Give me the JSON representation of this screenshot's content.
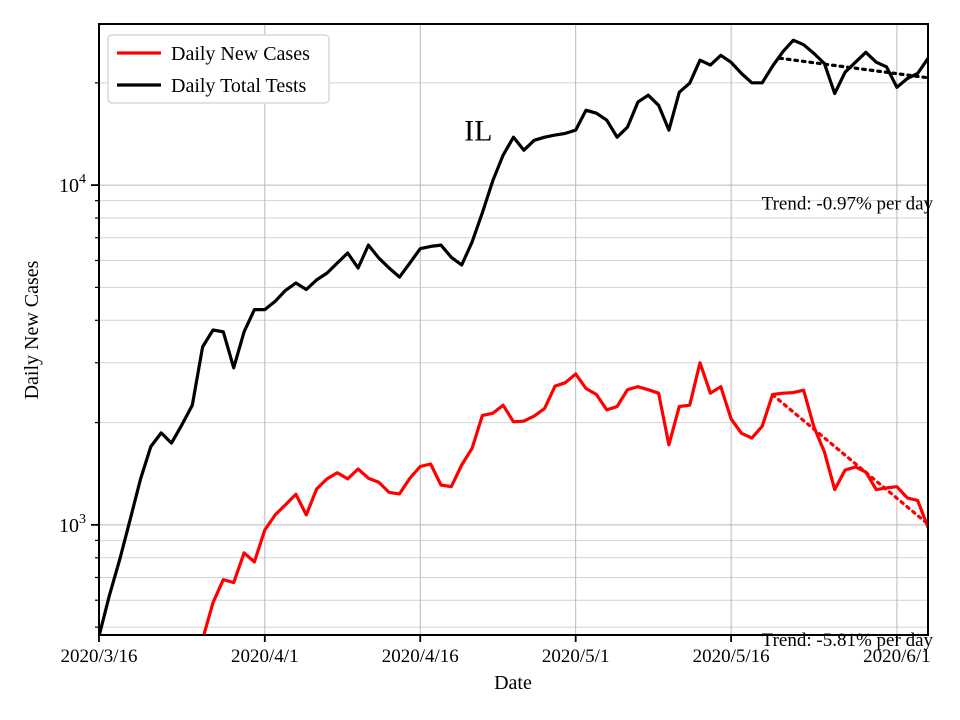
{
  "chart_data": {
    "type": "line",
    "state_label": "IL",
    "xlabel": "Date",
    "ylabel": "Daily New Cases",
    "y_scale": "log",
    "x_domain_days": [
      0,
      80
    ],
    "ylim": [
      474,
      29800
    ],
    "x_ticks": [
      {
        "day": 0,
        "label": "2020/3/16"
      },
      {
        "day": 16,
        "label": "2020/4/1"
      },
      {
        "day": 31,
        "label": "2020/4/16"
      },
      {
        "day": 46,
        "label": "2020/5/1"
      },
      {
        "day": 61,
        "label": "2020/5/16"
      },
      {
        "day": 77,
        "label": "2020/6/1"
      }
    ],
    "y_major_ticks": [
      {
        "value": 1000,
        "base": "10",
        "exp": "3"
      },
      {
        "value": 10000,
        "base": "10",
        "exp": "4"
      }
    ],
    "y_minor_ticks": [
      500,
      600,
      700,
      800,
      900,
      2000,
      3000,
      4000,
      5000,
      6000,
      7000,
      8000,
      9000,
      20000
    ],
    "dates": [
      "2020/3/16",
      "2020/3/17",
      "2020/3/18",
      "2020/3/19",
      "2020/3/20",
      "2020/3/21",
      "2020/3/22",
      "2020/3/23",
      "2020/3/24",
      "2020/3/25",
      "2020/3/26",
      "2020/3/27",
      "2020/3/28",
      "2020/3/29",
      "2020/3/30",
      "2020/3/31",
      "2020/4/1",
      "2020/4/2",
      "2020/4/3",
      "2020/4/4",
      "2020/4/5",
      "2020/4/6",
      "2020/4/7",
      "2020/4/8",
      "2020/4/9",
      "2020/4/10",
      "2020/4/11",
      "2020/4/12",
      "2020/4/13",
      "2020/4/14",
      "2020/4/15",
      "2020/4/16",
      "2020/4/17",
      "2020/4/18",
      "2020/4/19",
      "2020/4/20",
      "2020/4/21",
      "2020/4/22",
      "2020/4/23",
      "2020/4/24",
      "2020/4/25",
      "2020/4/26",
      "2020/4/27",
      "2020/4/28",
      "2020/4/29",
      "2020/4/30",
      "2020/5/1",
      "2020/5/2",
      "2020/5/3",
      "2020/5/4",
      "2020/5/5",
      "2020/5/6",
      "2020/5/7",
      "2020/5/8",
      "2020/5/9",
      "2020/5/10",
      "2020/5/11",
      "2020/5/12",
      "2020/5/13",
      "2020/5/14",
      "2020/5/15",
      "2020/5/16",
      "2020/5/17",
      "2020/5/18",
      "2020/5/19",
      "2020/5/20",
      "2020/5/21",
      "2020/5/22",
      "2020/5/23",
      "2020/5/24",
      "2020/5/25",
      "2020/5/26",
      "2020/5/27",
      "2020/5/28",
      "2020/5/29",
      "2020/5/30",
      "2020/5/31",
      "2020/6/1",
      "2020/6/2",
      "2020/6/3",
      "2020/6/4"
    ],
    "series": [
      {
        "name": "Daily New Cases",
        "color": "#ff0000",
        "values": [
          null,
          null,
          null,
          null,
          null,
          null,
          null,
          null,
          null,
          null,
          460,
          590,
          690,
          676,
          827,
          778,
          966,
          1070,
          1146,
          1230,
          1070,
          1275,
          1365,
          1424,
          1365,
          1460,
          1372,
          1335,
          1246,
          1233,
          1372,
          1485,
          1510,
          1310,
          1295,
          1500,
          1680,
          2100,
          2130,
          2250,
          2010,
          2020,
          2090,
          2200,
          2560,
          2620,
          2780,
          2520,
          2420,
          2180,
          2230,
          2500,
          2550,
          2500,
          2440,
          1720,
          2230,
          2250,
          3000,
          2440,
          2550,
          2050,
          1860,
          1800,
          1950,
          2420,
          2440,
          2450,
          2490,
          1940,
          1640,
          1270,
          1450,
          1480,
          1430,
          1270,
          1285,
          1295,
          1200,
          1180,
          985
        ]
      },
      {
        "name": "Daily Total Tests",
        "color": "#000000",
        "values": [
          470,
          620,
          790,
          1035,
          1360,
          1700,
          1865,
          1740,
          1970,
          2250,
          3340,
          3745,
          3700,
          2900,
          3700,
          4300,
          4300,
          4550,
          4900,
          5150,
          4930,
          5260,
          5510,
          5900,
          6310,
          5700,
          6660,
          6100,
          5700,
          5360,
          5900,
          6500,
          6600,
          6660,
          6130,
          5820,
          6800,
          8300,
          10300,
          12250,
          13840,
          12670,
          13550,
          13840,
          14030,
          14200,
          14520,
          16620,
          16280,
          15530,
          13840,
          14820,
          17550,
          18390,
          17180,
          14520,
          18770,
          19950,
          23320,
          22550,
          24100,
          22990,
          21300,
          20000,
          20000,
          22400,
          24700,
          26700,
          25900,
          24400,
          22800,
          18600,
          21500,
          23000,
          24600,
          23000,
          22300,
          19400,
          20600,
          21300,
          23600
        ]
      }
    ],
    "trend_lines": [
      {
        "series": "Daily Total Tests",
        "label": "Trend: -0.97% per day",
        "color": "#000000",
        "start_day": 65.7,
        "start_value": 23630,
        "end_day": 80,
        "end_value": 20700,
        "label_anchor_value": 8900
      },
      {
        "series": "Daily New Cases",
        "label": "Trend: -5.81% per day",
        "color": "#ff0000",
        "start_day": 65.0,
        "start_value": 2415,
        "end_day": 80,
        "end_value": 1005,
        "label_anchor_value": 462
      }
    ],
    "annotations": {
      "state": {
        "text": "IL",
        "day": 36.6,
        "value": 14500
      }
    },
    "legend": {
      "position": "upper left"
    },
    "grid": {
      "major_color": "#b9b9b9",
      "minor_color": "#d2d2d2"
    },
    "frame_color": "#000000",
    "background_color": "#ffffff"
  }
}
